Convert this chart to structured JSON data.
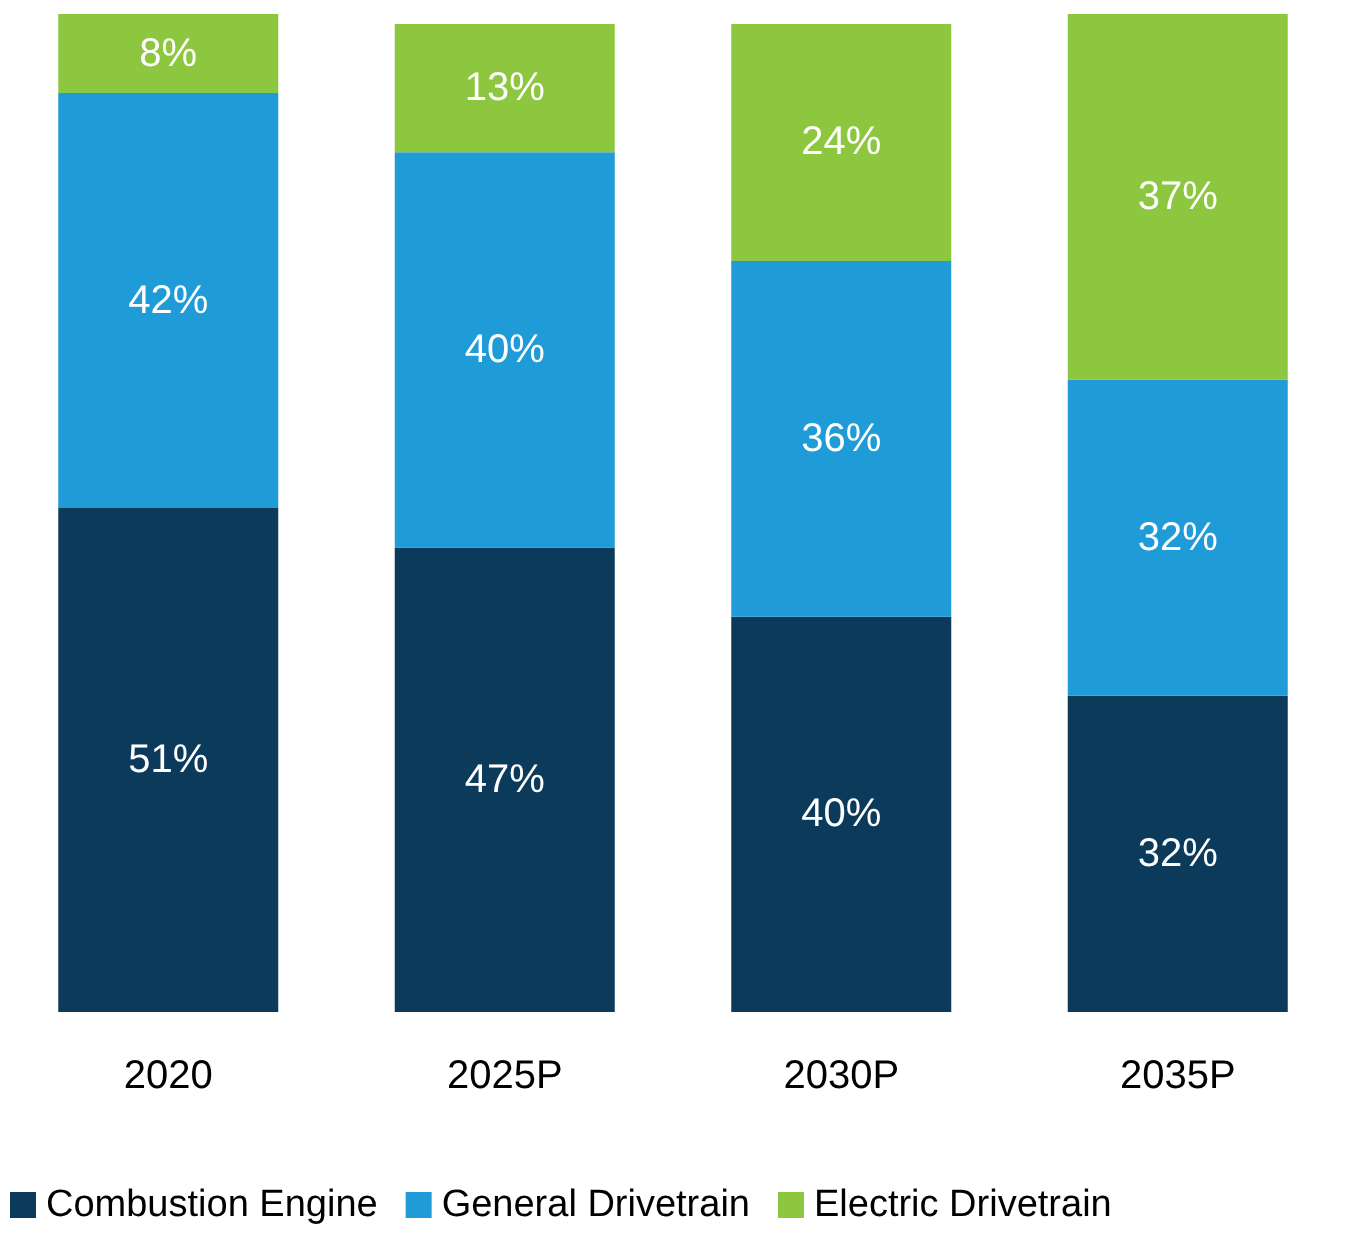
{
  "chart_data": {
    "type": "bar",
    "stacked": true,
    "categories": [
      "2020",
      "2025P",
      "2030P",
      "2035P"
    ],
    "series": [
      {
        "name": "Combustion Engine",
        "color": "#0b3a5b",
        "values": [
          51,
          47,
          40,
          32
        ],
        "value_labels": [
          "51%",
          "47%",
          "40%",
          "32%"
        ]
      },
      {
        "name": "General Drivetrain",
        "color": "#1f9bd7",
        "values": [
          42,
          40,
          36,
          32
        ],
        "value_labels": [
          "42%",
          "40%",
          "36%",
          "32%"
        ]
      },
      {
        "name": "Electric Drivetrain",
        "color": "#8dc63f",
        "values": [
          8,
          13,
          24,
          37
        ],
        "value_labels": [
          "8%",
          "13%",
          "24%",
          "37%"
        ]
      }
    ],
    "legend": "bottom"
  }
}
